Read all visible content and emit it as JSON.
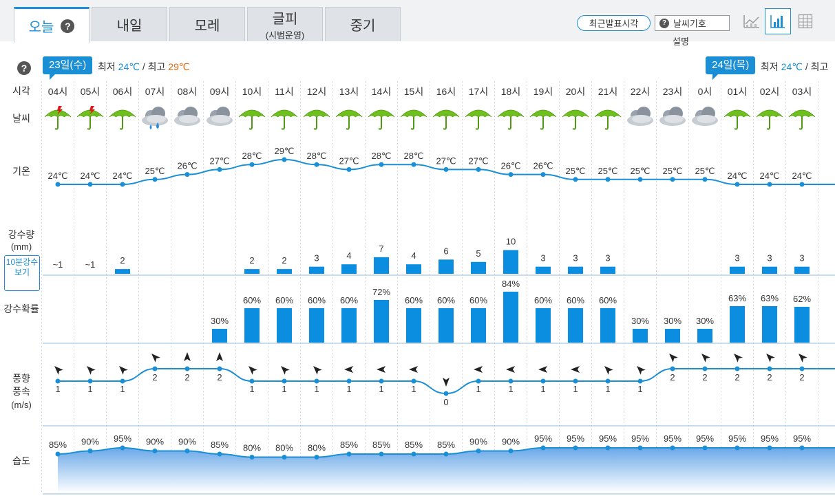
{
  "tabs": [
    {
      "label": "오늘",
      "sub": "",
      "active": true,
      "help": "?"
    },
    {
      "label": "내일",
      "sub": "",
      "active": false
    },
    {
      "label": "모레",
      "sub": "",
      "active": false
    },
    {
      "label": "글피",
      "sub": "(시범운영)",
      "active": false
    },
    {
      "label": "중기",
      "sub": "",
      "active": false
    }
  ],
  "toolbar": {
    "recent_label": "최근발표시각",
    "symbols_label": "날씨기호",
    "symbols_sub": "설명",
    "help": "?"
  },
  "row_labels": {
    "help": "?",
    "time": "시각",
    "weather": "날씨",
    "temp": "기온",
    "precip": "강수량",
    "precip_unit": "(mm)",
    "tenmin_button": "10분강수보기",
    "prob": "강수확률",
    "wind": "풍향",
    "wind2": "풍속",
    "wind_unit": "(m/s)",
    "humidity": "습도"
  },
  "days": [
    {
      "label": "23일(수)",
      "min_prefix": "최저",
      "min": "24℃",
      "sep": "/",
      "max_prefix": "최고",
      "max": "29℃"
    },
    {
      "label": "24일(목)",
      "min_prefix": "최저",
      "min": "24℃",
      "sep": "/",
      "max_prefix": "최고",
      "max": ""
    }
  ],
  "colors": {
    "accent": "#1a8fd6",
    "bar": "#0c8ee0",
    "max_temp": "#e06b12",
    "umbrella": "#6fbf1f"
  },
  "hours": [
    "04시",
    "05시",
    "06시",
    "07시",
    "08시",
    "09시",
    "10시",
    "11시",
    "12시",
    "13시",
    "14시",
    "15시",
    "16시",
    "17시",
    "18시",
    "19시",
    "20시",
    "21시",
    "22시",
    "23시",
    "0시",
    "01시",
    "02시",
    "03시"
  ],
  "weather_icons": [
    "umbrella-lightning-icon",
    "umbrella-lightning-icon",
    "umbrella-icon",
    "rain-cloud-icon",
    "cloudy-icon",
    "cloudy-icon",
    "umbrella-icon",
    "umbrella-icon",
    "umbrella-icon",
    "umbrella-icon",
    "umbrella-icon",
    "umbrella-icon",
    "umbrella-icon",
    "umbrella-icon",
    "umbrella-icon",
    "umbrella-icon",
    "umbrella-icon",
    "umbrella-icon",
    "cloudy-icon",
    "cloudy-icon",
    "cloudy-icon",
    "umbrella-icon",
    "umbrella-icon",
    "umbrella-icon"
  ],
  "chart_data": {
    "type": "line",
    "temperature": [
      24,
      24,
      24,
      25,
      26,
      27,
      28,
      29,
      28,
      27,
      28,
      28,
      27,
      27,
      26,
      26,
      25,
      25,
      25,
      25,
      25,
      24,
      24,
      24
    ],
    "temperature_labels": [
      "24℃",
      "24℃",
      "24℃",
      "25℃",
      "26℃",
      "27℃",
      "28℃",
      "29℃",
      "28℃",
      "27℃",
      "28℃",
      "28℃",
      "27℃",
      "27℃",
      "26℃",
      "26℃",
      "25℃",
      "25℃",
      "25℃",
      "25℃",
      "25℃",
      "24℃",
      "24℃",
      "24℃"
    ],
    "precip_values": [
      0.5,
      0.5,
      2,
      0,
      0,
      0,
      2,
      2,
      3,
      4,
      7,
      4,
      6,
      5,
      10,
      3,
      3,
      3,
      0,
      0,
      0,
      3,
      3,
      3
    ],
    "precip_labels": [
      "~1",
      "~1",
      "2",
      "",
      "",
      "",
      "2",
      "2",
      "3",
      "4",
      "7",
      "4",
      "6",
      "5",
      "10",
      "3",
      "3",
      "3",
      "",
      "",
      "",
      "3",
      "3",
      "3"
    ],
    "prob_values": [
      0,
      0,
      0,
      0,
      0,
      30,
      60,
      60,
      60,
      60,
      72,
      60,
      60,
      60,
      84,
      60,
      60,
      60,
      30,
      30,
      30,
      63,
      63,
      62
    ],
    "prob_labels": [
      "",
      "",
      "",
      "",
      "",
      "30%",
      "60%",
      "60%",
      "60%",
      "60%",
      "72%",
      "60%",
      "60%",
      "60%",
      "84%",
      "60%",
      "60%",
      "60%",
      "30%",
      "30%",
      "30%",
      "63%",
      "63%",
      "62%"
    ],
    "wind_speed": [
      1,
      1,
      1,
      2,
      2,
      2,
      1,
      1,
      1,
      1,
      1,
      1,
      0,
      1,
      1,
      1,
      1,
      1,
      1,
      2,
      2,
      2,
      2,
      2
    ],
    "wind_dir_deg": [
      315,
      315,
      315,
      315,
      0,
      0,
      315,
      315,
      315,
      270,
      270,
      270,
      180,
      270,
      270,
      270,
      270,
      315,
      315,
      315,
      315,
      315,
      315,
      315
    ],
    "humidity": [
      85,
      90,
      95,
      90,
      90,
      85,
      80,
      80,
      80,
      85,
      85,
      85,
      85,
      90,
      90,
      95,
      95,
      95,
      95,
      95,
      95,
      95,
      95,
      95
    ],
    "humidity_labels": [
      "85%",
      "90%",
      "95%",
      "90%",
      "90%",
      "85%",
      "80%",
      "80%",
      "80%",
      "85%",
      "85%",
      "85%",
      "85%",
      "90%",
      "90%",
      "95%",
      "95%",
      "95%",
      "95%",
      "95%",
      "95%",
      "95%",
      "95%",
      "95%"
    ]
  }
}
